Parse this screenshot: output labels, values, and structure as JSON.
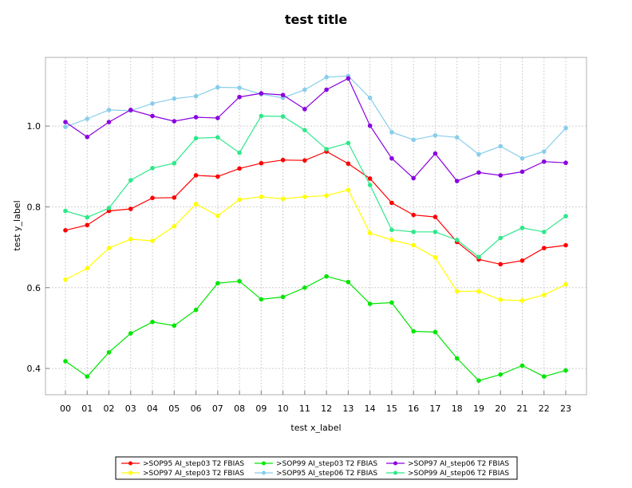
{
  "chart_data": {
    "type": "line",
    "title": "test title",
    "xlabel": "test x_label",
    "ylabel": "test y_label",
    "categories": [
      "00",
      "01",
      "02",
      "03",
      "04",
      "05",
      "06",
      "07",
      "08",
      "09",
      "10",
      "11",
      "12",
      "13",
      "14",
      "15",
      "16",
      "17",
      "18",
      "19",
      "20",
      "21",
      "22",
      "23"
    ],
    "y_ticks": [
      "0.4",
      "0.6",
      "0.8",
      "1.0"
    ],
    "ylim": [
      0.335,
      1.17
    ],
    "grid": true,
    "legend_position": "bottom",
    "series": [
      {
        "name": ">SOP95 AI_step03 T2 FBIAS",
        "color": "#ff0000",
        "values": [
          0.742,
          0.755,
          0.79,
          0.795,
          0.822,
          0.823,
          0.878,
          0.875,
          0.895,
          0.908,
          0.916,
          0.915,
          0.937,
          0.907,
          0.87,
          0.81,
          0.78,
          0.775,
          0.713,
          0.67,
          0.658,
          0.667,
          0.698,
          0.705
        ]
      },
      {
        "name": ">SOP97 AI_step03 T2 FBIAS",
        "color": "#ffff00",
        "values": [
          0.62,
          0.648,
          0.698,
          0.72,
          0.716,
          0.752,
          0.807,
          0.778,
          0.818,
          0.825,
          0.82,
          0.825,
          0.828,
          0.842,
          0.735,
          0.718,
          0.705,
          0.675,
          0.591,
          0.591,
          0.57,
          0.568,
          0.582,
          0.608
        ]
      },
      {
        "name": ">SOP99 AI_step03 T2 FBIAS",
        "color": "#00e600",
        "values": [
          0.418,
          0.38,
          0.44,
          0.487,
          0.515,
          0.506,
          0.545,
          0.611,
          0.616,
          0.571,
          0.577,
          0.6,
          0.628,
          0.614,
          0.56,
          0.563,
          0.492,
          0.49,
          0.425,
          0.37,
          0.385,
          0.407,
          0.38,
          0.395
        ]
      },
      {
        "name": ">SOP95 AI_step06 T2 FBIAS",
        "color": "#87ceeb",
        "values": [
          0.998,
          1.018,
          1.04,
          1.038,
          1.056,
          1.068,
          1.074,
          1.096,
          1.095,
          1.079,
          1.07,
          1.09,
          1.121,
          1.124,
          1.07,
          0.985,
          0.966,
          0.977,
          0.972,
          0.93,
          0.95,
          0.92,
          0.937,
          0.995
        ]
      },
      {
        "name": ">SOP97 AI_step06 T2 FBIAS",
        "color": "#8a00e0",
        "values": [
          1.01,
          0.973,
          1.01,
          1.04,
          1.025,
          1.012,
          1.022,
          1.02,
          1.072,
          1.081,
          1.077,
          1.042,
          1.09,
          1.118,
          1.001,
          0.92,
          0.871,
          0.932,
          0.864,
          0.885,
          0.878,
          0.887,
          0.912,
          0.909
        ]
      },
      {
        "name": ">SOP99 AI_step06 T2 FBIAS",
        "color": "#2ee88a",
        "values": [
          0.79,
          0.774,
          0.797,
          0.866,
          0.896,
          0.908,
          0.97,
          0.972,
          0.934,
          1.025,
          1.024,
          0.99,
          0.943,
          0.958,
          0.854,
          0.743,
          0.738,
          0.738,
          0.718,
          0.676,
          0.723,
          0.748,
          0.738,
          0.777
        ]
      }
    ]
  }
}
